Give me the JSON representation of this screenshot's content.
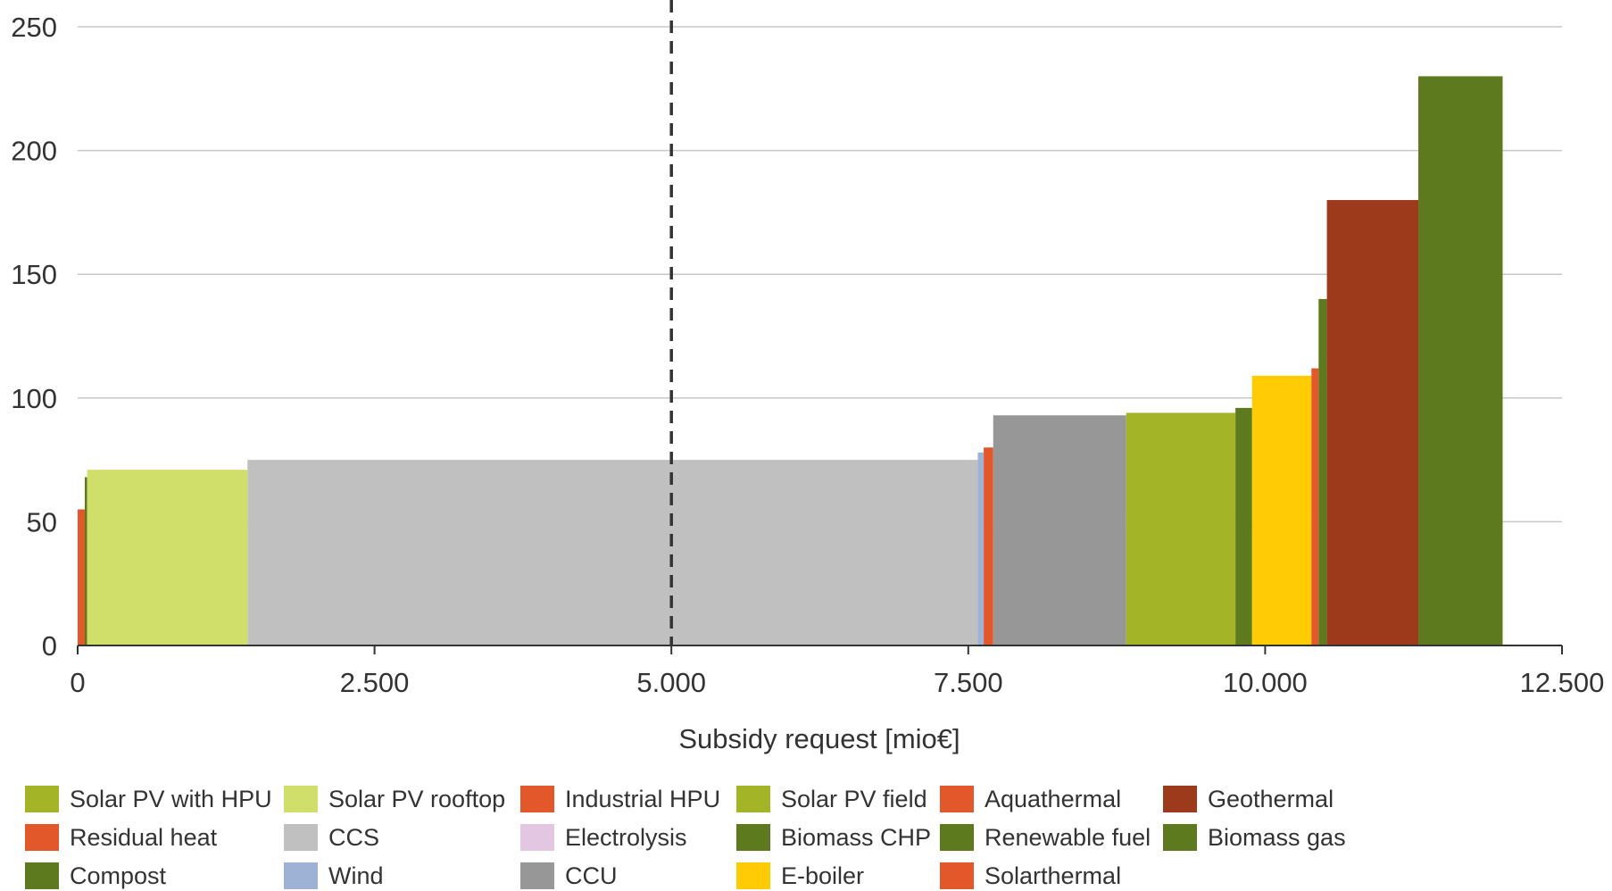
{
  "chart_data": {
    "type": "bar",
    "subtype": "variable-width cost curve",
    "xlabel": "Subsidy request [mio€]",
    "ylabel": "",
    "xlim": [
      0,
      12500
    ],
    "ylim": [
      0,
      250
    ],
    "x_ticks": [
      0,
      2500,
      5000,
      7500,
      10000,
      12500
    ],
    "x_tick_labels": [
      "0",
      "2.500",
      "5.000",
      "7.500",
      "10.000",
      "12.500"
    ],
    "y_ticks": [
      0,
      50,
      100,
      150,
      200,
      250
    ],
    "y_tick_labels": [
      "0",
      "50",
      "100",
      "150",
      "200",
      "250"
    ],
    "grid": "horizontal",
    "reference_line": {
      "x": 5000,
      "style": "dashed",
      "color": "#333333"
    },
    "bars": [
      {
        "category": "Residual heat",
        "x_start": 0,
        "x_end": 60,
        "value": 55,
        "color": "#E2582A"
      },
      {
        "category": "Compost",
        "x_start": 60,
        "x_end": 80,
        "value": 68,
        "color": "#5E7A1E"
      },
      {
        "category": "Solar PV rooftop",
        "x_start": 80,
        "x_end": 1430,
        "value": 71,
        "color": "#D0DE6A"
      },
      {
        "category": "CCS",
        "x_start": 1430,
        "x_end": 7580,
        "value": 75,
        "color": "#C0C0C0"
      },
      {
        "category": "Wind",
        "x_start": 7580,
        "x_end": 7630,
        "value": 78,
        "color": "#9EB2D6"
      },
      {
        "category": "Industrial HPU",
        "x_start": 7630,
        "x_end": 7710,
        "value": 80,
        "color": "#E2582A"
      },
      {
        "category": "CCU",
        "x_start": 7710,
        "x_end": 8830,
        "value": 93,
        "color": "#979797"
      },
      {
        "category": "Solar PV field",
        "x_start": 8830,
        "x_end": 9750,
        "value": 94,
        "color": "#A4B427"
      },
      {
        "category": "Biomass CHP",
        "x_start": 9750,
        "x_end": 9890,
        "value": 96,
        "color": "#5E7A1E"
      },
      {
        "category": "E-boiler",
        "x_start": 9890,
        "x_end": 10390,
        "value": 109,
        "color": "#FFCB05"
      },
      {
        "category": "Aquathermal",
        "x_start": 10390,
        "x_end": 10450,
        "value": 112,
        "color": "#E2582A"
      },
      {
        "category": "Renewable fuel",
        "x_start": 10450,
        "x_end": 10520,
        "value": 140,
        "color": "#5E7A1E"
      },
      {
        "category": "Geothermal",
        "x_start": 10520,
        "x_end": 11290,
        "value": 180,
        "color": "#9E3A1C"
      },
      {
        "category": "Biomass gas",
        "x_start": 11290,
        "x_end": 12000,
        "value": 230,
        "color": "#5E7A1E"
      }
    ],
    "legend": {
      "position": "bottom",
      "items": [
        {
          "name": "Solar PV with HPU",
          "color": "#A4B427"
        },
        {
          "name": "Solar PV rooftop",
          "color": "#D0DE6A"
        },
        {
          "name": "Industrial HPU",
          "color": "#E2582A"
        },
        {
          "name": "Solar PV field",
          "color": "#A4B427"
        },
        {
          "name": "Aquathermal",
          "color": "#E2582A"
        },
        {
          "name": "Geothermal",
          "color": "#9E3A1C"
        },
        {
          "name": "Residual heat",
          "color": "#E2582A"
        },
        {
          "name": "CCS",
          "color": "#C0C0C0"
        },
        {
          "name": "Electrolysis",
          "color": "#E3C6E1"
        },
        {
          "name": "Biomass CHP",
          "color": "#5E7A1E"
        },
        {
          "name": "Renewable fuel",
          "color": "#5E7A1E"
        },
        {
          "name": "Biomass gas",
          "color": "#5E7A1E"
        },
        {
          "name": "Compost",
          "color": "#5E7A1E"
        },
        {
          "name": "Wind",
          "color": "#9EB2D6"
        },
        {
          "name": "CCU",
          "color": "#979797"
        },
        {
          "name": "E-boiler",
          "color": "#FFCB05"
        },
        {
          "name": "Solarthermal",
          "color": "#E2582A"
        }
      ]
    }
  }
}
